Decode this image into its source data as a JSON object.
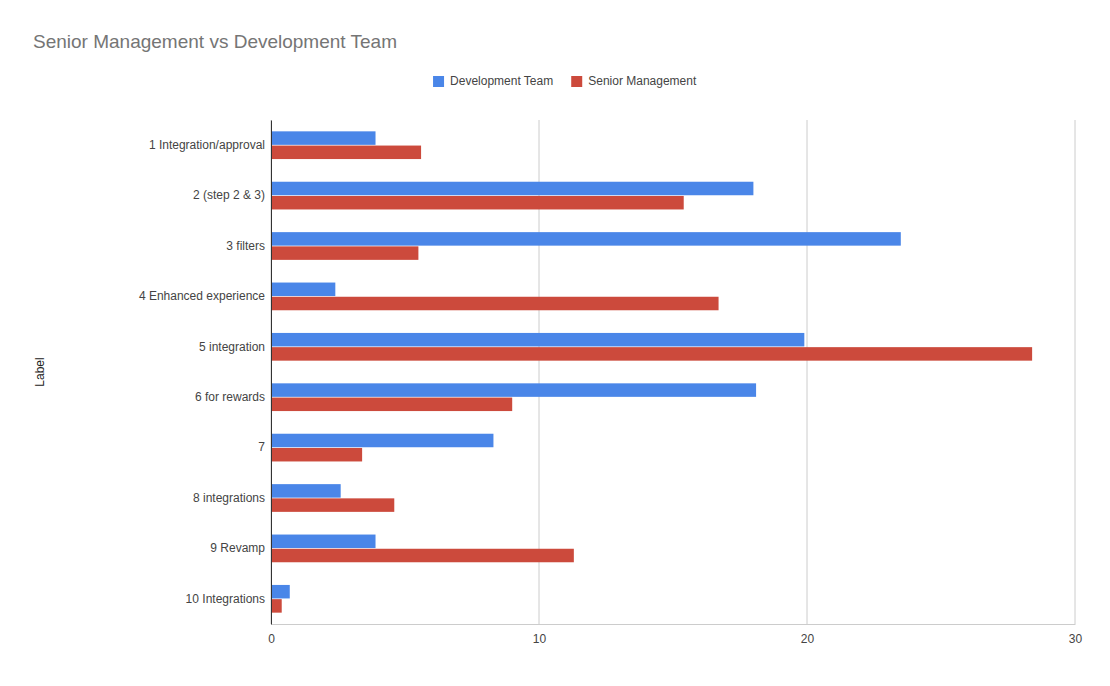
{
  "chart_data": {
    "type": "bar",
    "orientation": "horizontal",
    "title": "Senior Management vs Development Team",
    "y_label": "Label",
    "categories": [
      "1 Integration/approval",
      "2 (step 2 & 3)",
      "3 filters",
      "4 Enhanced experience",
      "5 integration",
      "6 for rewards",
      "7",
      "8 integrations",
      "9 Revamp",
      "10 Integrations"
    ],
    "series": [
      {
        "name": "Development Team",
        "color": "#4a86e8",
        "values": [
          3.9,
          18.0,
          23.5,
          2.4,
          19.9,
          18.1,
          8.3,
          2.6,
          3.9,
          0.7
        ]
      },
      {
        "name": "Senior Management",
        "color": "#cc4a3c",
        "values": [
          5.6,
          15.4,
          5.5,
          16.7,
          28.4,
          9.0,
          3.4,
          4.6,
          11.3,
          0.4
        ]
      }
    ],
    "xlim": [
      0,
      30
    ],
    "xticks": [
      0,
      10,
      20,
      30
    ],
    "grid": true,
    "legend": "top"
  }
}
